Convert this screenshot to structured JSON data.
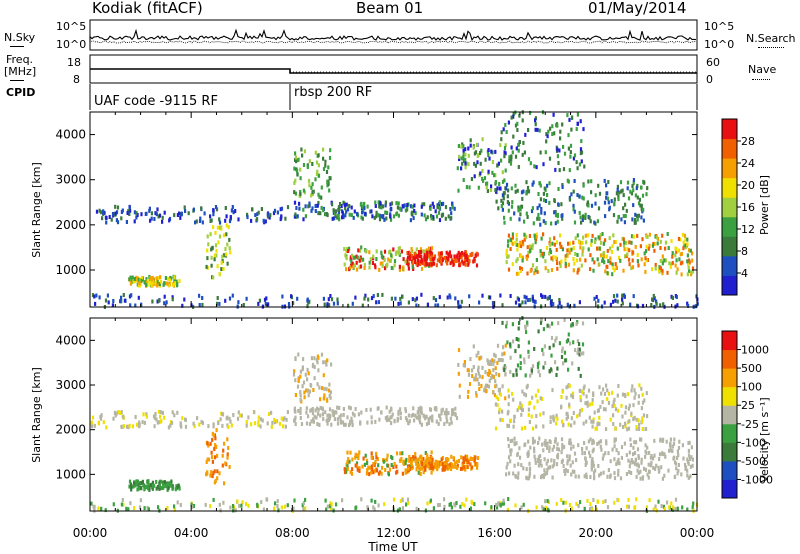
{
  "header": {
    "station": "Kodiak (fitACF)",
    "beam": "Beam 01",
    "date": "01/May/2014"
  },
  "left_labels": {
    "nsky": "N.Sky",
    "freq_line1": "Freq.",
    "freq_line2": "[MHz]",
    "cpid": "CPID"
  },
  "right_labels": {
    "nsearch": "N.Search",
    "nave": "Nave"
  },
  "panels": {
    "noise_ticks_left": [
      "10^5",
      "10^0"
    ],
    "noise_ticks_right": [
      "10^5",
      "10^0"
    ],
    "freq_ticks_left": [
      "18",
      "8"
    ],
    "freq_ticks_right": [
      "60",
      "0"
    ]
  },
  "cpid_labels": [
    "UAF code -9115 RF",
    "rbsp 200 RF"
  ],
  "xlabel": "Time UT",
  "colors": {
    "power": [
      "#2020d0",
      "#1e4fc0",
      "#3a7a3a",
      "#3aa040",
      "#a0d040",
      "#f0e000",
      "#f5a000",
      "#f06000",
      "#e81010"
    ],
    "velocity": [
      "#2020d0",
      "#1e4fc0",
      "#3a7a3a",
      "#3aa040",
      "#b5b5a5",
      "#f0e000",
      "#f5a000",
      "#f06000",
      "#e81010"
    ]
  },
  "chart_data": [
    {
      "type": "heatmap",
      "name": "power",
      "ylabel": "Slant Range [km]",
      "xlabel": "Time UT",
      "x_ticks": [
        "00:00",
        "04:00",
        "08:00",
        "12:00",
        "16:00",
        "20:00",
        "00:00"
      ],
      "xlim_hours": [
        0,
        24
      ],
      "ylim": [
        180,
        4500
      ],
      "y_ticks": [
        1000,
        2000,
        3000,
        4000
      ],
      "colorbar_label": "Power [dB]",
      "colorbar_ticks": [
        "28",
        "24",
        "20",
        "16",
        "12",
        "8",
        "4"
      ],
      "colorbar_range": [
        0,
        30
      ]
    },
    {
      "type": "heatmap",
      "name": "velocity",
      "ylabel": "Slant Range [km]",
      "xlabel": "Time UT",
      "x_ticks": [
        "00:00",
        "04:00",
        "08:00",
        "12:00",
        "16:00",
        "20:00",
        "00:00"
      ],
      "xlim_hours": [
        0,
        24
      ],
      "ylim": [
        180,
        4500
      ],
      "y_ticks": [
        1000,
        2000,
        3000,
        4000
      ],
      "colorbar_label": "Velocity [m s⁻¹]",
      "colorbar_ticks": [
        "1000",
        "500",
        "100",
        "25",
        "-25",
        "-100",
        "-500",
        "-1000"
      ]
    }
  ]
}
